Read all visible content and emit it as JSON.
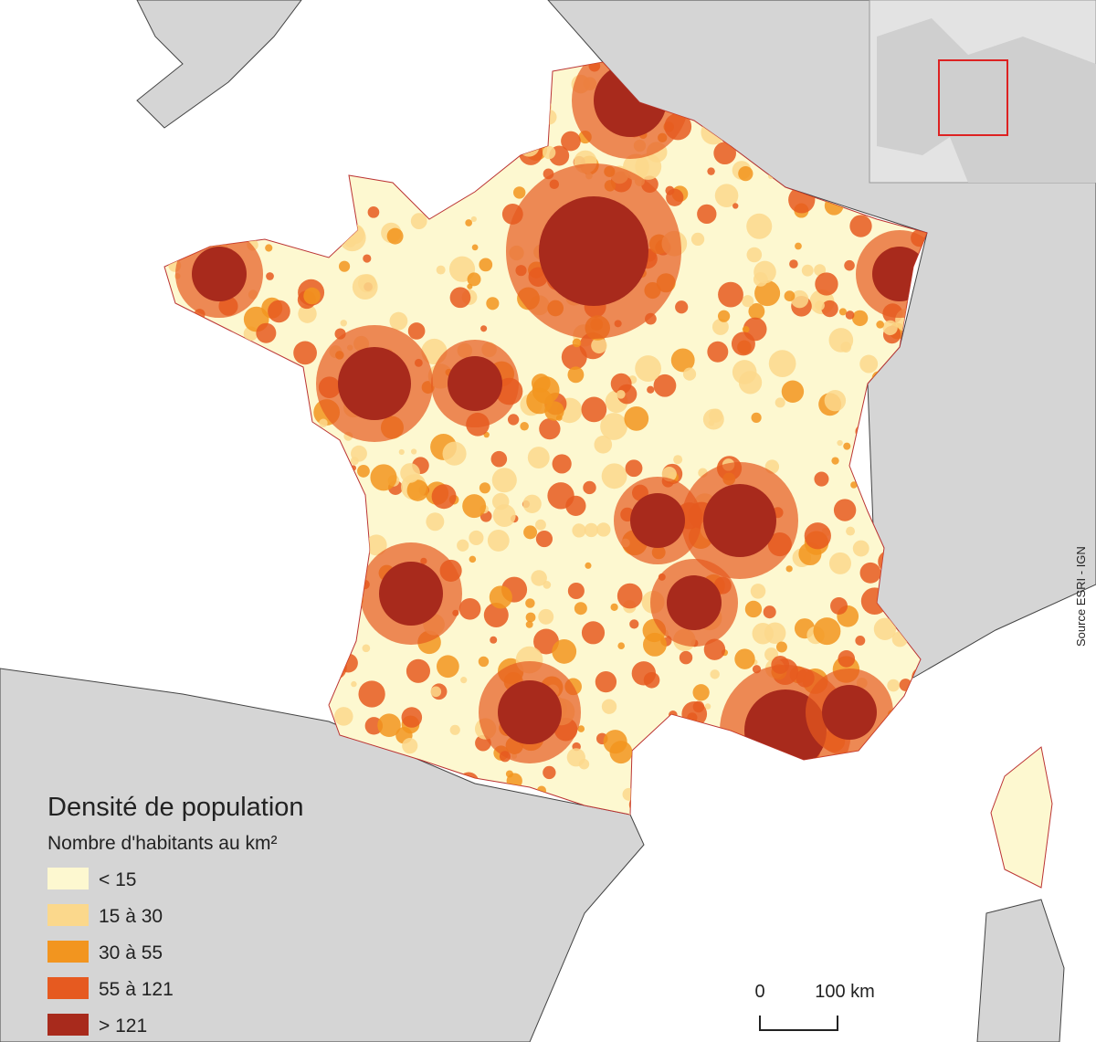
{
  "legend": {
    "title": "Densité de population",
    "subtitle": "Nombre d'habitants au km²",
    "items": [
      {
        "label": "< 15",
        "color": "#fdf8d0"
      },
      {
        "label": "15 à 30",
        "color": "#fbd88c"
      },
      {
        "label": "30 à 55",
        "color": "#f2951f"
      },
      {
        "label": "55 à 121",
        "color": "#e65a20"
      },
      {
        "label": "> 121",
        "color": "#a82a1c"
      }
    ]
  },
  "scale_bar": {
    "labels": [
      "0",
      "100 km"
    ]
  },
  "source": "Source ESRI - IGN"
}
